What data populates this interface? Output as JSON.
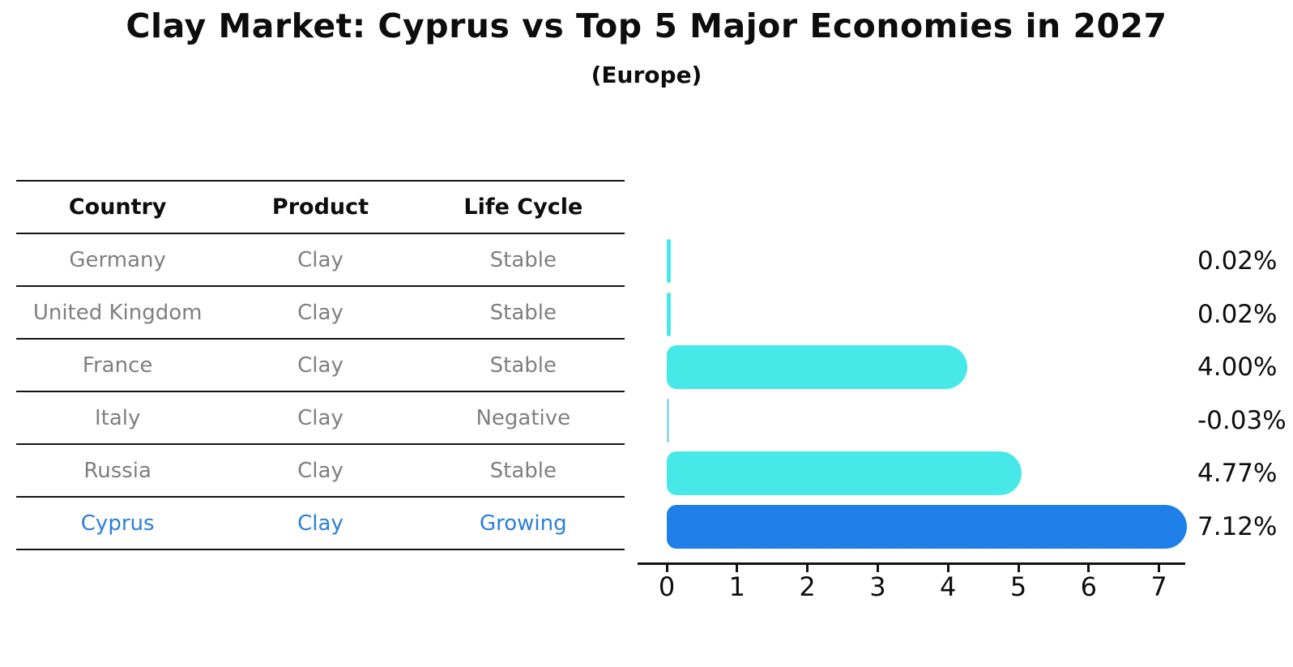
{
  "title": "Clay Market: Cyprus vs Top 5 Major Economies in 2027",
  "subtitle": "(Europe)",
  "table": {
    "headers": [
      "Country",
      "Product",
      "Life Cycle"
    ],
    "rows": [
      {
        "country": "Germany",
        "product": "Clay",
        "life_cycle": "Stable",
        "highlighted": false
      },
      {
        "country": "United Kingdom",
        "product": "Clay",
        "life_cycle": "Stable",
        "highlighted": false
      },
      {
        "country": "France",
        "product": "Clay",
        "life_cycle": "Stable",
        "highlighted": false
      },
      {
        "country": "Italy",
        "product": "Clay",
        "life_cycle": "Negative",
        "highlighted": false
      },
      {
        "country": "Russia",
        "product": "Clay",
        "life_cycle": "Stable",
        "highlighted": false
      },
      {
        "country": "Cyprus",
        "product": "Clay",
        "life_cycle": "Growing",
        "highlighted": true
      }
    ]
  },
  "chart_data": {
    "type": "bar",
    "orientation": "horizontal",
    "title": "Clay Market: Cyprus vs Top 5 Major Economies in 2027 (Europe)",
    "categories": [
      "Germany",
      "United Kingdom",
      "France",
      "Italy",
      "Russia",
      "Cyprus"
    ],
    "values": [
      0.02,
      0.02,
      4.0,
      -0.03,
      4.77,
      7.12
    ],
    "value_labels": [
      "0.02%",
      "0.02%",
      "4.00%",
      "-0.03%",
      "4.77%",
      "7.12%"
    ],
    "xlabel": "",
    "ylabel": "",
    "xticks": [
      0,
      1,
      2,
      3,
      4,
      5,
      6,
      7
    ],
    "xlim": [
      0,
      7.5
    ],
    "grid": false,
    "legend": false,
    "highlight_category": "Cyprus",
    "colors": {
      "default_bar": "#47E8E8",
      "highlight_bar": "#1E7FE9",
      "negative_bar": "#9AD6E8",
      "highlight_text": "#2A7FDB",
      "table_text": "#7F7F7F",
      "axis_text": "#0D0D0D"
    }
  }
}
